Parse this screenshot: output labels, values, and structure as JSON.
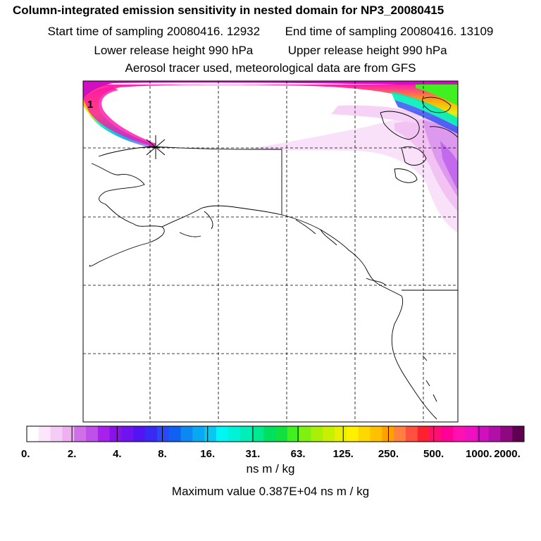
{
  "header": {
    "title": "Column-integrated emission sensitivity in nested domain for NP3_20080415",
    "start_label": "Start time of sampling 20080416. 12932",
    "end_label": "End time of sampling 20080416. 13109",
    "lower_label": "Lower release height  990 hPa",
    "upper_label": "Upper release height  990 hPa",
    "tracer_label": "Aerosol tracer used, meteorological data are from GFS"
  },
  "map": {
    "marker_label": "1"
  },
  "colorbar": {
    "tick_labels": [
      "0.",
      "2.",
      "4.",
      "8.",
      "16.",
      "31.",
      "63.",
      "125.",
      "250.",
      "500.",
      "1000.",
      "2000."
    ],
    "colors": [
      "#ffffff",
      "#fbe6fb",
      "#f5ccf5",
      "#eeb0f0",
      "#d070e8",
      "#c050ea",
      "#a820ec",
      "#8a10ec",
      "#6f14f0",
      "#5214f2",
      "#3a28f4",
      "#2a48f4",
      "#1060f2",
      "#0c88f2",
      "#0aa8f2",
      "#08c8f2",
      "#00f6f2",
      "#00f2d8",
      "#00eeb8",
      "#00e890",
      "#00e060",
      "#10e040",
      "#40f020",
      "#80f010",
      "#a8f008",
      "#c8f000",
      "#e6f000",
      "#fff000",
      "#ffd800",
      "#ffc000",
      "#ffa000",
      "#ff8040",
      "#ff5040",
      "#ff2030",
      "#ff1070",
      "#ff0098",
      "#ff10b0",
      "#f010c0",
      "#d010c0",
      "#b010a8",
      "#900880",
      "#600050"
    ],
    "units": "ns m / kg"
  },
  "footer": {
    "max_value": "Maximum value  0.387E+04 ns m / kg"
  }
}
